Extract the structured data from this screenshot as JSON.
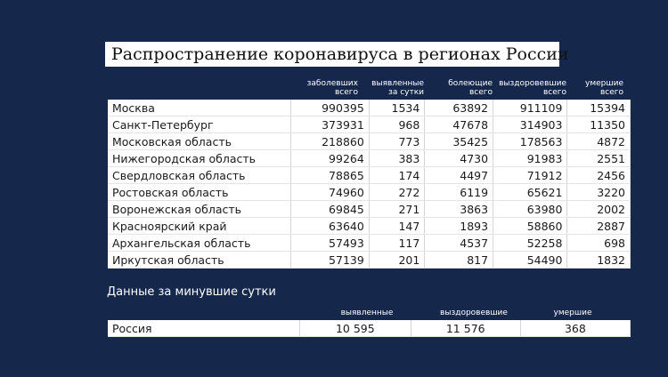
{
  "header": {
    "title": "Распространение коронавируса в регионах России"
  },
  "table": {
    "columns": [
      "заболевших\nвсего",
      "выявленные\nза сутки",
      "болеющие\nвсего",
      "выздоровевшие\nвсего",
      "умершие\nвсего"
    ],
    "rows": [
      [
        "Москва",
        990395,
        1534,
        63892,
        911109,
        15394
      ],
      [
        "Санкт-Петербург",
        373931,
        968,
        47678,
        314903,
        11350
      ],
      [
        "Московская область",
        218860,
        773,
        35425,
        178563,
        4872
      ],
      [
        "Нижегородская область",
        99264,
        383,
        4730,
        91983,
        2551
      ],
      [
        "Свердловская область",
        78865,
        174,
        4497,
        71912,
        2456
      ],
      [
        "Ростовская область",
        74960,
        272,
        6119,
        65621,
        3220
      ],
      [
        "Воронежская область",
        69845,
        271,
        3863,
        63980,
        2002
      ],
      [
        "Красноярский край",
        63640,
        147,
        1893,
        58860,
        2887
      ],
      [
        "Архангельская область",
        57493,
        117,
        4537,
        52258,
        698
      ],
      [
        "Иркутская область",
        57139,
        201,
        817,
        54490,
        1832
      ]
    ]
  },
  "summary": {
    "title": "Данные за минувшие сутки",
    "columns": [
      "выявленные",
      "выздоровевшие",
      "умершие"
    ],
    "rows": [
      [
        "Россия",
        "10 595",
        "11 576",
        "368"
      ]
    ]
  }
}
